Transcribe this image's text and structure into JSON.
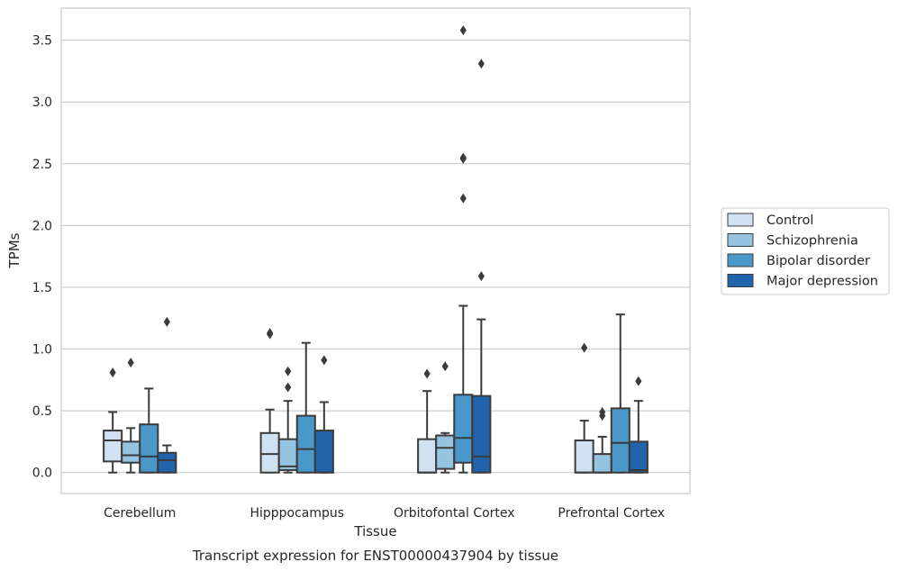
{
  "chart_data": {
    "type": "box",
    "title": "Transcript expression for ENST00000437904 by tissue",
    "xlabel": "Tissue",
    "ylabel": "TPMs",
    "ylim": [
      -0.17,
      3.76
    ],
    "yticks": [
      0.0,
      0.5,
      1.0,
      1.5,
      2.0,
      2.5,
      3.0,
      3.5
    ],
    "ytick_labels": [
      "0.0",
      "0.5",
      "1.0",
      "1.5",
      "2.0",
      "2.5",
      "3.0",
      "3.5"
    ],
    "grid": "horizontal",
    "legend_position": "right",
    "categories": [
      "Cerebellum",
      "Hipppocampus",
      "Orbitofontal Cortex",
      "Prefrontal Cortex"
    ],
    "series": [
      {
        "name": "Control",
        "color": "#d0e1f2",
        "boxes": [
          {
            "min": 0.0,
            "q1": 0.09,
            "median": 0.26,
            "q3": 0.34,
            "max": 0.49,
            "outliers": [
              0.81
            ]
          },
          {
            "min": 0.0,
            "q1": 0.0,
            "median": 0.15,
            "q3": 0.32,
            "max": 0.51,
            "outliers": [
              1.12,
              1.13
            ]
          },
          {
            "min": 0.0,
            "q1": 0.0,
            "median": 0.0,
            "q3": 0.27,
            "max": 0.66,
            "outliers": [
              0.8
            ]
          },
          {
            "min": 0.0,
            "q1": 0.0,
            "median": 0.0,
            "q3": 0.26,
            "max": 0.42,
            "outliers": [
              1.01
            ]
          }
        ]
      },
      {
        "name": "Schizophrenia",
        "color": "#94c4df",
        "boxes": [
          {
            "min": 0.0,
            "q1": 0.08,
            "median": 0.14,
            "q3": 0.25,
            "max": 0.36,
            "outliers": [
              0.89
            ]
          },
          {
            "min": 0.0,
            "q1": 0.02,
            "median": 0.05,
            "q3": 0.27,
            "max": 0.58,
            "outliers": [
              0.69,
              0.82
            ]
          },
          {
            "min": 0.0,
            "q1": 0.03,
            "median": 0.2,
            "q3": 0.3,
            "max": 0.32,
            "outliers": [
              0.86
            ]
          },
          {
            "min": 0.0,
            "q1": 0.0,
            "median": 0.0,
            "q3": 0.15,
            "max": 0.29,
            "outliers": [
              0.46,
              0.49
            ]
          }
        ]
      },
      {
        "name": "Bipolar disorder",
        "color": "#4a98c9",
        "boxes": [
          {
            "min": 0.0,
            "q1": 0.0,
            "median": 0.13,
            "q3": 0.39,
            "max": 0.68,
            "outliers": []
          },
          {
            "min": 0.0,
            "q1": 0.0,
            "median": 0.19,
            "q3": 0.46,
            "max": 1.05,
            "outliers": []
          },
          {
            "min": 0.0,
            "q1": 0.08,
            "median": 0.28,
            "q3": 0.63,
            "max": 1.35,
            "outliers": [
              2.22,
              2.54,
              2.55,
              3.58
            ]
          },
          {
            "min": 0.0,
            "q1": 0.0,
            "median": 0.24,
            "q3": 0.52,
            "max": 1.28,
            "outliers": []
          }
        ]
      },
      {
        "name": "Major depression",
        "color": "#2164ab",
        "boxes": [
          {
            "min": 0.0,
            "q1": 0.0,
            "median": 0.1,
            "q3": 0.16,
            "max": 0.22,
            "outliers": [
              1.22
            ]
          },
          {
            "min": 0.0,
            "q1": 0.0,
            "median": 0.0,
            "q3": 0.34,
            "max": 0.57,
            "outliers": [
              0.91
            ]
          },
          {
            "min": 0.0,
            "q1": 0.0,
            "median": 0.13,
            "q3": 0.62,
            "max": 1.24,
            "outliers": [
              1.59,
              3.31
            ]
          },
          {
            "min": 0.0,
            "q1": 0.0,
            "median": 0.02,
            "q3": 0.25,
            "max": 0.58,
            "outliers": [
              0.74
            ]
          }
        ]
      }
    ]
  }
}
